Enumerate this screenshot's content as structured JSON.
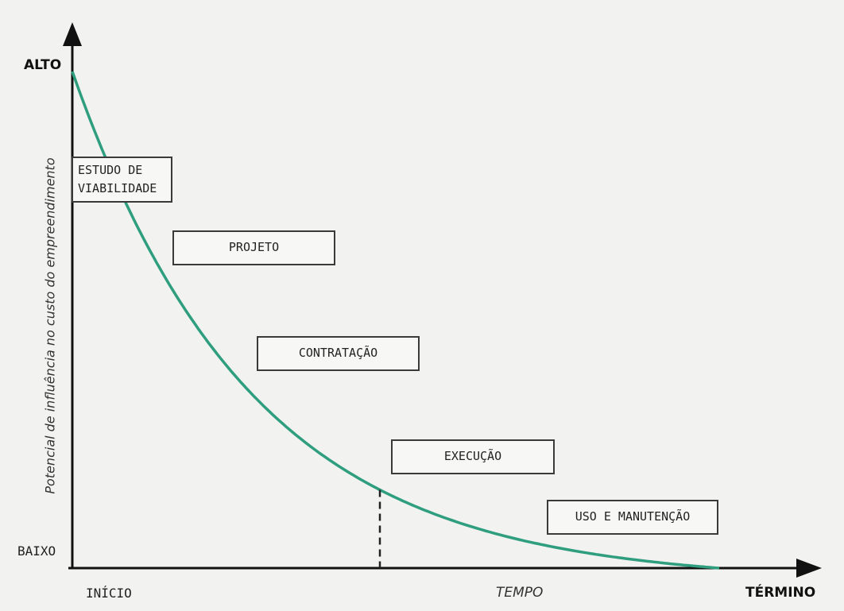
{
  "diagram": {
    "y_axis": {
      "label": "Potencial de influência no custo do empreendimento",
      "top_label": "ALTO",
      "bottom_label": "BAIXO"
    },
    "x_axis": {
      "start_label": "INÍCIO",
      "middle_label": "TEMPO",
      "end_label": "TÉRMINO"
    },
    "phases": [
      {
        "label": "ESTUDO DE\nVIABILIDADE"
      },
      {
        "label": "PROJETO"
      },
      {
        "label": "CONTRATAÇÃO"
      },
      {
        "label": "EXECUÇÃO"
      },
      {
        "label": "USO E MANUTENÇÃO"
      }
    ],
    "curve": {
      "type": "exponential-decay",
      "color": "#2e9e7e"
    },
    "marker": {
      "style": "dashed",
      "at_phase": "EXECUÇÃO"
    }
  }
}
